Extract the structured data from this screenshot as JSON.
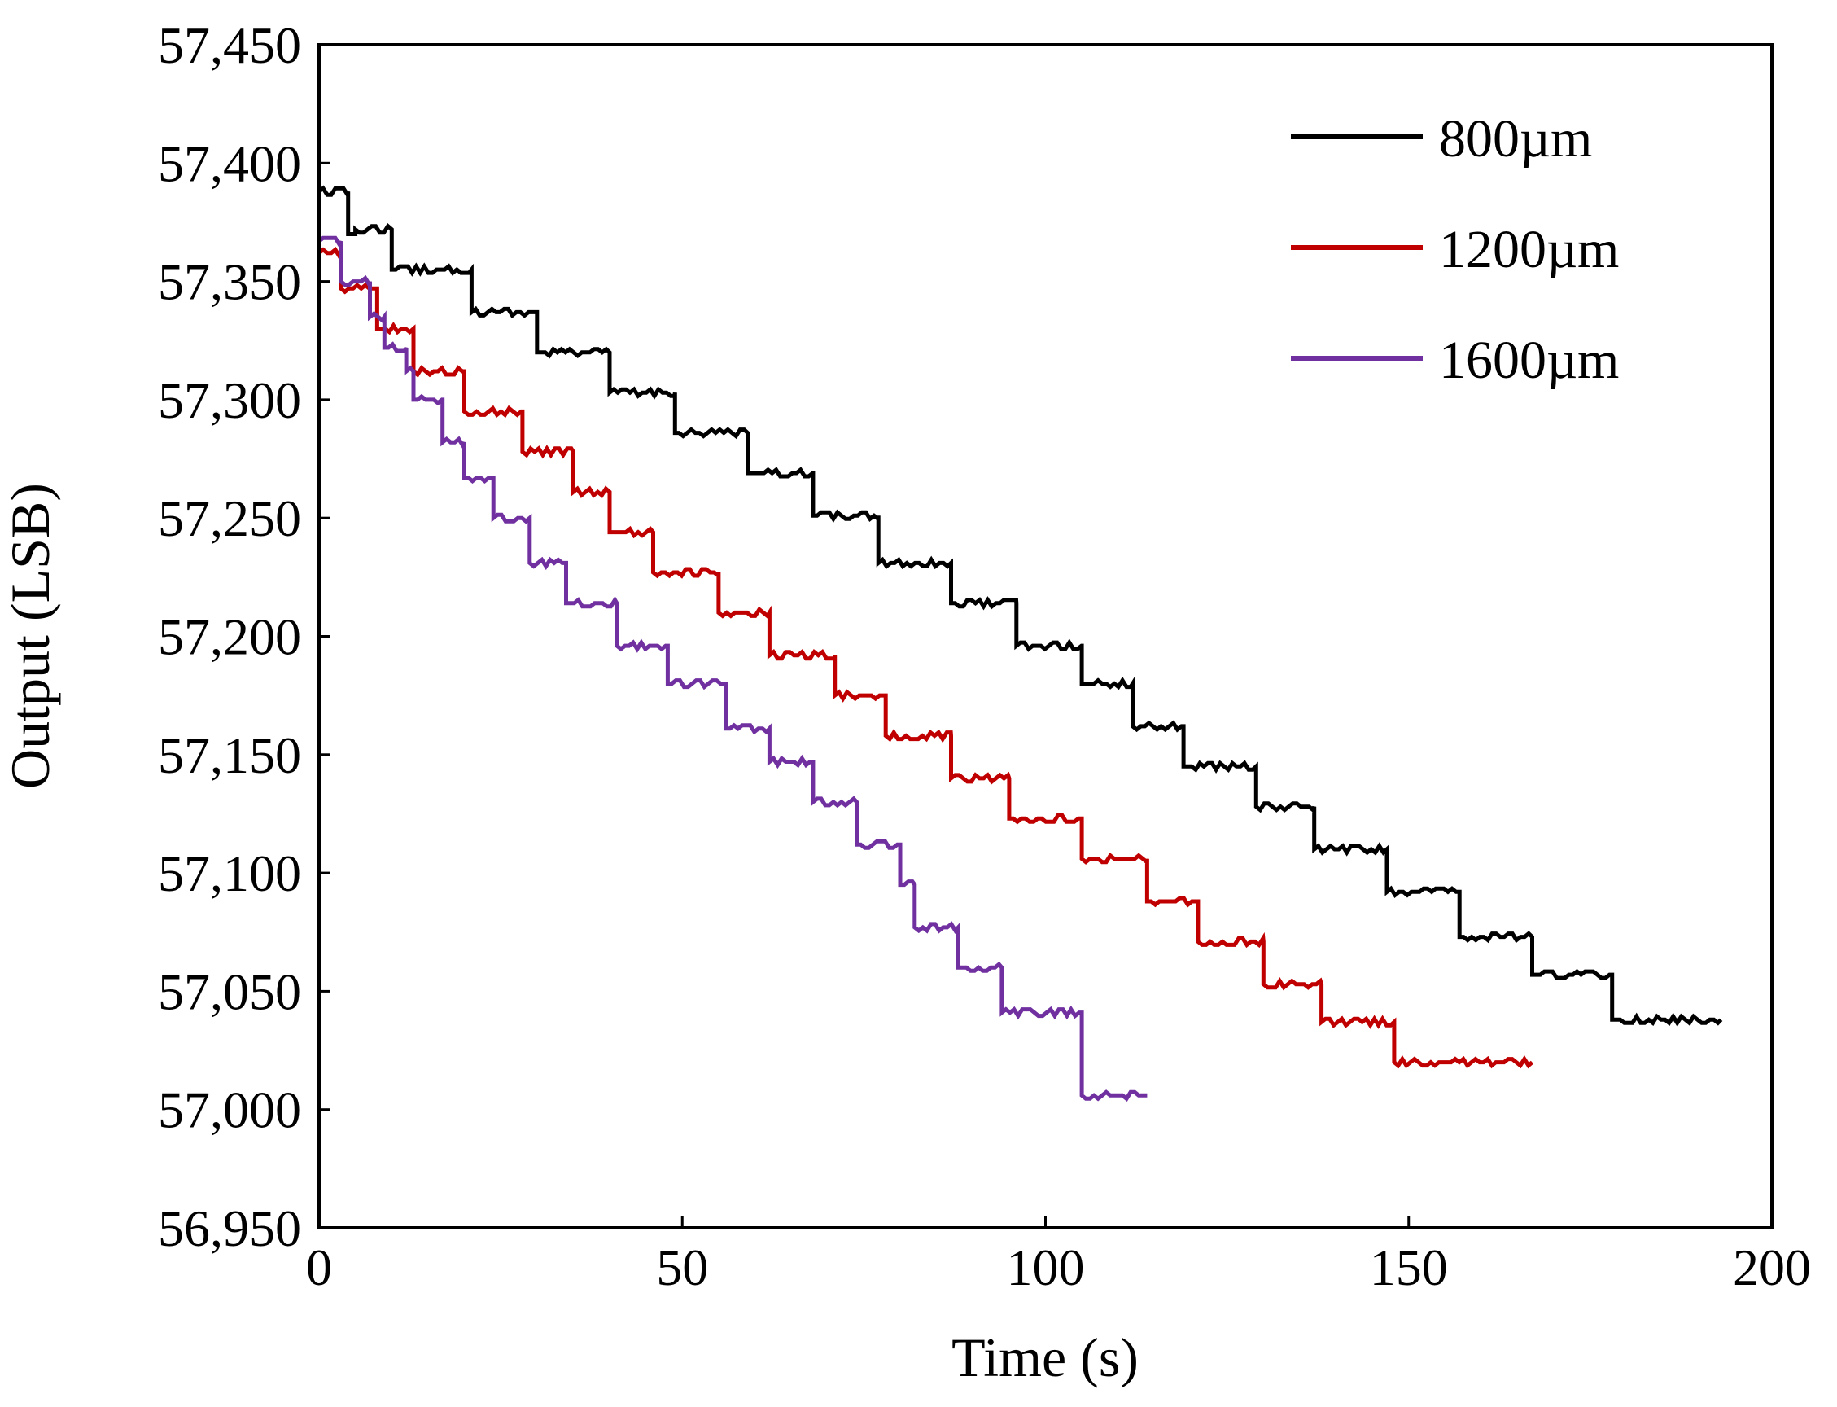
{
  "chart_data": {
    "type": "line",
    "title": "",
    "xlabel": "Time (s)",
    "ylabel": "Output (LSB)",
    "xlim": [
      0,
      200
    ],
    "ylim": [
      56950,
      57450
    ],
    "x_ticks": [
      0,
      50,
      100,
      150,
      200
    ],
    "y_ticks": [
      56950,
      57000,
      57050,
      57100,
      57150,
      57200,
      57250,
      57300,
      57350,
      57400,
      57450
    ],
    "x_tick_labels": [
      "0",
      "50",
      "100",
      "150",
      "200"
    ],
    "y_tick_labels": [
      "56,950",
      "57,000",
      "57,050",
      "57,100",
      "57,150",
      "57,200",
      "57,250",
      "57,300",
      "57,350",
      "57,400",
      "57,450"
    ],
    "grid": false,
    "legend_position": "top-right",
    "series": [
      {
        "name": "800µm",
        "color": "#000000",
        "steps": [
          [
            0,
            57388
          ],
          [
            4,
            57370
          ],
          [
            5,
            57372
          ],
          [
            10,
            57355
          ],
          [
            21,
            57337
          ],
          [
            30,
            57320
          ],
          [
            40,
            57303
          ],
          [
            49,
            57286
          ],
          [
            59,
            57269
          ],
          [
            68,
            57251
          ],
          [
            77,
            57231
          ],
          [
            87,
            57214
          ],
          [
            96,
            57196
          ],
          [
            105,
            57180
          ],
          [
            112,
            57162
          ],
          [
            119,
            57145
          ],
          [
            129,
            57128
          ],
          [
            137,
            57110
          ],
          [
            147,
            57092
          ],
          [
            157,
            57073
          ],
          [
            167,
            57057
          ],
          [
            178,
            57038
          ],
          [
            193,
            57038
          ]
        ]
      },
      {
        "name": "1200µm",
        "color": "#c00000",
        "steps": [
          [
            0,
            57362
          ],
          [
            3,
            57347
          ],
          [
            8,
            57330
          ],
          [
            13,
            57312
          ],
          [
            20,
            57295
          ],
          [
            28,
            57278
          ],
          [
            35,
            57261
          ],
          [
            40,
            57244
          ],
          [
            46,
            57227
          ],
          [
            55,
            57210
          ],
          [
            62,
            57192
          ],
          [
            71,
            57175
          ],
          [
            78,
            57158
          ],
          [
            87,
            57140
          ],
          [
            95,
            57123
          ],
          [
            105,
            57106
          ],
          [
            114,
            57088
          ],
          [
            121,
            57071
          ],
          [
            130,
            57053
          ],
          [
            138,
            57037
          ],
          [
            148,
            57020
          ],
          [
            167,
            57020
          ]
        ]
      },
      {
        "name": "1600µm",
        "color": "#7030a0",
        "steps": [
          [
            0,
            57367
          ],
          [
            3,
            57350
          ],
          [
            7,
            57335
          ],
          [
            9,
            57322
          ],
          [
            12,
            57312
          ],
          [
            13,
            57300
          ],
          [
            17,
            57282
          ],
          [
            20,
            57267
          ],
          [
            24,
            57250
          ],
          [
            29,
            57231
          ],
          [
            34,
            57214
          ],
          [
            41,
            57196
          ],
          [
            48,
            57180
          ],
          [
            56,
            57161
          ],
          [
            62,
            57147
          ],
          [
            68,
            57130
          ],
          [
            74,
            57112
          ],
          [
            80,
            57095
          ],
          [
            82,
            57077
          ],
          [
            88,
            57060
          ],
          [
            94,
            57041
          ],
          [
            105,
            57006
          ],
          [
            114,
            57006
          ]
        ]
      }
    ]
  }
}
